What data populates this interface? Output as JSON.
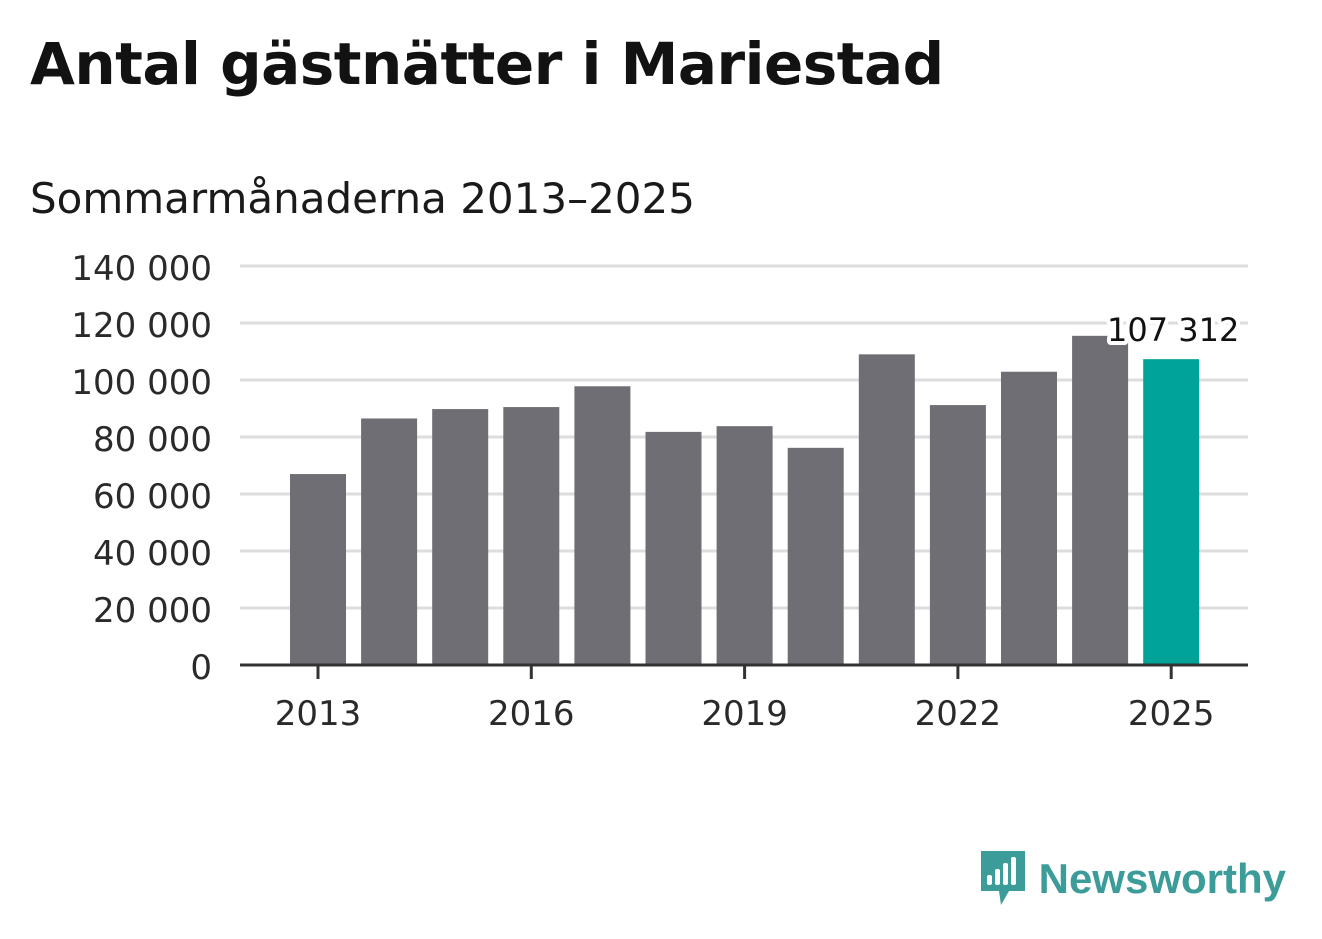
{
  "title": "Antal gästnätter i Mariestad",
  "subtitle": "Sommarmånaderna 2013–2025",
  "brand": {
    "name": "Newsworthy",
    "color": "#3c9c99"
  },
  "colors": {
    "bar": "#6f6e74",
    "highlight": "#00a398",
    "grid": "#dddddd",
    "axis": "#333333",
    "text": "#2a2a2a"
  },
  "chart_data": {
    "type": "bar",
    "categories": [
      "2013",
      "2014",
      "2015",
      "2016",
      "2017",
      "2018",
      "2019",
      "2020",
      "2021",
      "2022",
      "2023",
      "2024",
      "2025"
    ],
    "values": [
      67000,
      86500,
      89800,
      90500,
      97800,
      81800,
      83800,
      76200,
      109000,
      91200,
      102900,
      115500,
      107312
    ],
    "highlight_index": 12,
    "annotation": {
      "index": 12,
      "label": "107 312"
    },
    "ylim": [
      0,
      140000
    ],
    "yticks": [
      0,
      20000,
      40000,
      60000,
      80000,
      100000,
      120000,
      140000
    ],
    "ytick_labels": [
      "0",
      "20 000",
      "40 000",
      "60 000",
      "80 000",
      "100 000",
      "120 000",
      "140 000"
    ],
    "xtick_labels": [
      "2013",
      "2016",
      "2019",
      "2022",
      "2025"
    ],
    "xtick_indices": [
      0,
      3,
      6,
      9,
      12
    ],
    "grid": true,
    "xlabel": "",
    "ylabel": ""
  }
}
